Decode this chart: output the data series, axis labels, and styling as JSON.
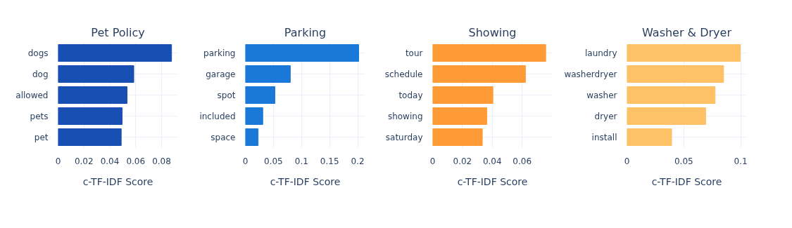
{
  "chart_data": [
    {
      "type": "bar",
      "orientation": "horizontal",
      "title": "Pet Policy",
      "xlabel": "c-TF-IDF Score",
      "categories": [
        "dogs",
        "dog",
        "allowed",
        "pets",
        "pet"
      ],
      "values": [
        0.0877,
        0.0585,
        0.0533,
        0.0495,
        0.0488
      ],
      "color": "#184fb3",
      "xlim": [
        0,
        0.0925
      ],
      "xticks": [
        0,
        0.02,
        0.04,
        0.06,
        0.08
      ],
      "grid": true
    },
    {
      "type": "bar",
      "orientation": "horizontal",
      "title": "Parking",
      "xlabel": "c-TF-IDF Score",
      "categories": [
        "parking",
        "garage",
        "spot",
        "included",
        "space"
      ],
      "values": [
        0.2017,
        0.08,
        0.0526,
        0.031,
        0.0227
      ],
      "color": "#1a78d9",
      "xlim": [
        0,
        0.213
      ],
      "xticks": [
        0,
        0.05,
        0.1,
        0.15,
        0.2
      ],
      "grid": true
    },
    {
      "type": "bar",
      "orientation": "horizontal",
      "title": "Showing",
      "xlabel": "c-TF-IDF Score",
      "categories": [
        "tour",
        "schedule",
        "today",
        "showing",
        "saturday"
      ],
      "values": [
        0.0758,
        0.0622,
        0.0404,
        0.0363,
        0.0333
      ],
      "color": "#ff9b37",
      "xlim": [
        0,
        0.0802
      ],
      "xticks": [
        0,
        0.02,
        0.04,
        0.06
      ],
      "grid": true
    },
    {
      "type": "bar",
      "orientation": "horizontal",
      "title": "Washer & Dryer",
      "xlabel": "c-TF-IDF Score",
      "categories": [
        "laundry",
        "washerdryer",
        "washer",
        "dryer",
        "install"
      ],
      "values": [
        0.0996,
        0.085,
        0.0775,
        0.0692,
        0.0393
      ],
      "color": "#ffc166",
      "xlim": [
        0,
        0.1052
      ],
      "xticks": [
        0,
        0.05,
        0.1
      ],
      "grid": true
    }
  ]
}
